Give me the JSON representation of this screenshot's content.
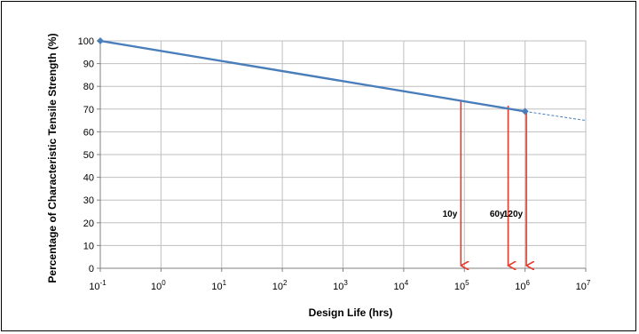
{
  "chart_data": {
    "type": "line",
    "title": "",
    "xlabel": "Design Life (hrs)",
    "ylabel": "Percentage of Characteristic Tensile Strength (%)",
    "x_scale": "log",
    "xlim": [
      0.1,
      10000000
    ],
    "ylim": [
      0,
      100
    ],
    "grid": true,
    "x_tick_labels": [
      {
        "base": "10",
        "exp": "-1",
        "value": 0.1
      },
      {
        "base": "10",
        "exp": "0",
        "value": 1
      },
      {
        "base": "10",
        "exp": "1",
        "value": 10
      },
      {
        "base": "10",
        "exp": "2",
        "value": 100
      },
      {
        "base": "10",
        "exp": "3",
        "value": 1000
      },
      {
        "base": "10",
        "exp": "4",
        "value": 10000
      },
      {
        "base": "10",
        "exp": "5",
        "value": 100000
      },
      {
        "base": "10",
        "exp": "6",
        "value": 1000000
      },
      {
        "base": "10",
        "exp": "7",
        "value": 10000000
      }
    ],
    "y_tick_labels": [
      "0",
      "10",
      "20",
      "30",
      "40",
      "50",
      "60",
      "70",
      "80",
      "90",
      "100"
    ],
    "series": [
      {
        "line": "solid",
        "color": "#4a7ebb",
        "points": [
          {
            "x": 0.1,
            "y": 100
          },
          {
            "x": 1000000,
            "y": 69
          }
        ]
      },
      {
        "line": "dashed",
        "color": "#4a7ebb",
        "points": [
          {
            "x": 1000000,
            "y": 69
          },
          {
            "x": 10000000,
            "y": 65
          }
        ]
      }
    ],
    "annotations": [
      {
        "label": "10y",
        "x": 87600,
        "y": 73.5,
        "color": "#e8392b"
      },
      {
        "label": "60y",
        "x": 525600,
        "y": 71.5,
        "color": "#e8392b"
      },
      {
        "label": "120y",
        "x": 1051200,
        "y": 69.5,
        "color": "#e8392b"
      }
    ]
  }
}
